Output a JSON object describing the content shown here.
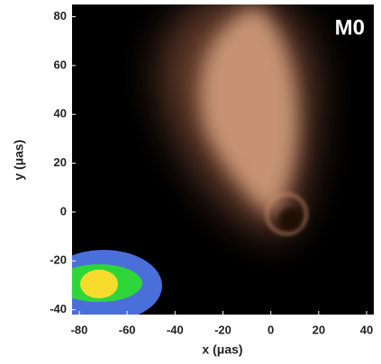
{
  "chart_data": {
    "type": "image",
    "label": "M0",
    "xlabel": "x (μas)",
    "ylabel": "y (μas)",
    "xlim": [
      -83,
      43
    ],
    "ylim": [
      -42,
      85
    ],
    "xticks": [
      -80,
      -60,
      -40,
      -20,
      0,
      20,
      40
    ],
    "yticks": [
      -40,
      -20,
      0,
      20,
      40,
      60,
      80
    ]
  }
}
